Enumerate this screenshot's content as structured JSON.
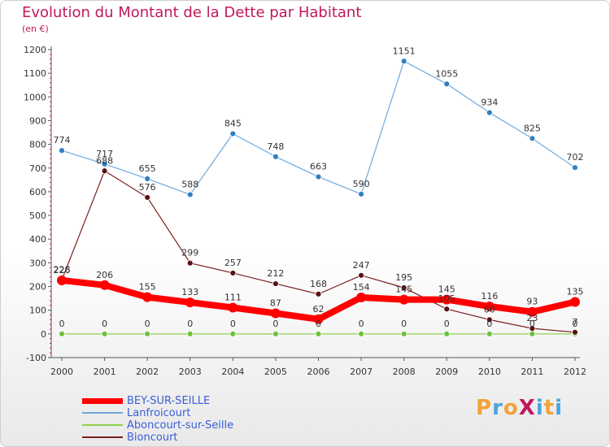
{
  "header": {
    "title": "Evolution du Montant de la Dette par Habitant",
    "unit": "(en €)"
  },
  "logo": {
    "text": "ProXiti",
    "colors": [
      "#f2a33a",
      "#4aa3df",
      "#f2a33a",
      "#c2185b",
      "#4aa3df",
      "#f2a33a",
      "#4aa3df"
    ]
  },
  "chart_data": {
    "type": "line",
    "title": "Evolution du Montant de la Dette par Habitant",
    "subtitle": "(en €)",
    "xlabel": "",
    "ylabel": "",
    "x": [
      "2000",
      "2001",
      "2002",
      "2003",
      "2004",
      "2005",
      "2006",
      "2007",
      "2008",
      "2009",
      "2010",
      "2011",
      "2012"
    ],
    "ylim": [
      -100,
      1200
    ],
    "yticks": [
      -100,
      0,
      100,
      200,
      300,
      400,
      500,
      600,
      700,
      800,
      900,
      1000,
      1100,
      1200
    ],
    "grid": false,
    "legend_position": "bottom-left",
    "series": [
      {
        "name": "BEY-SUR-SEILLE",
        "color": "#ff0000",
        "values": [
          226,
          206,
          155,
          133,
          111,
          87,
          62,
          154,
          145,
          145,
          116,
          93,
          135
        ],
        "labels": [
          "226",
          "206",
          "155",
          "133",
          "111",
          "87",
          "62",
          "154",
          "145",
          "145",
          "116",
          "93",
          "135"
        ]
      },
      {
        "name": "Lanfroicourt",
        "color": "#6fa8dc",
        "values": [
          774,
          717,
          655,
          588,
          845,
          748,
          663,
          590,
          1151,
          1055,
          934,
          825,
          702
        ],
        "labels": [
          "774",
          "717",
          "655",
          "588",
          "845",
          "748",
          "663",
          "590",
          "1151",
          "1055",
          "934",
          "825",
          "702"
        ]
      },
      {
        "name": "Aboncourt-sur-Seille",
        "color": "#8fd14f",
        "values": [
          0,
          0,
          0,
          0,
          0,
          0,
          0,
          0,
          0,
          0,
          0,
          0,
          0
        ],
        "labels": [
          "0",
          "0",
          "0",
          "0",
          "0",
          "0",
          "0",
          "0",
          "0",
          "0",
          "0",
          "0",
          "0"
        ]
      },
      {
        "name": "Bioncourt",
        "color": "#7a1f1f",
        "values": [
          228,
          688,
          576,
          299,
          257,
          212,
          168,
          247,
          195,
          105,
          60,
          23,
          7
        ],
        "labels": [
          "228",
          "688",
          "576",
          "299",
          "257",
          "212",
          "168",
          "247",
          "195",
          "105",
          "60",
          "23",
          "7"
        ]
      }
    ]
  }
}
